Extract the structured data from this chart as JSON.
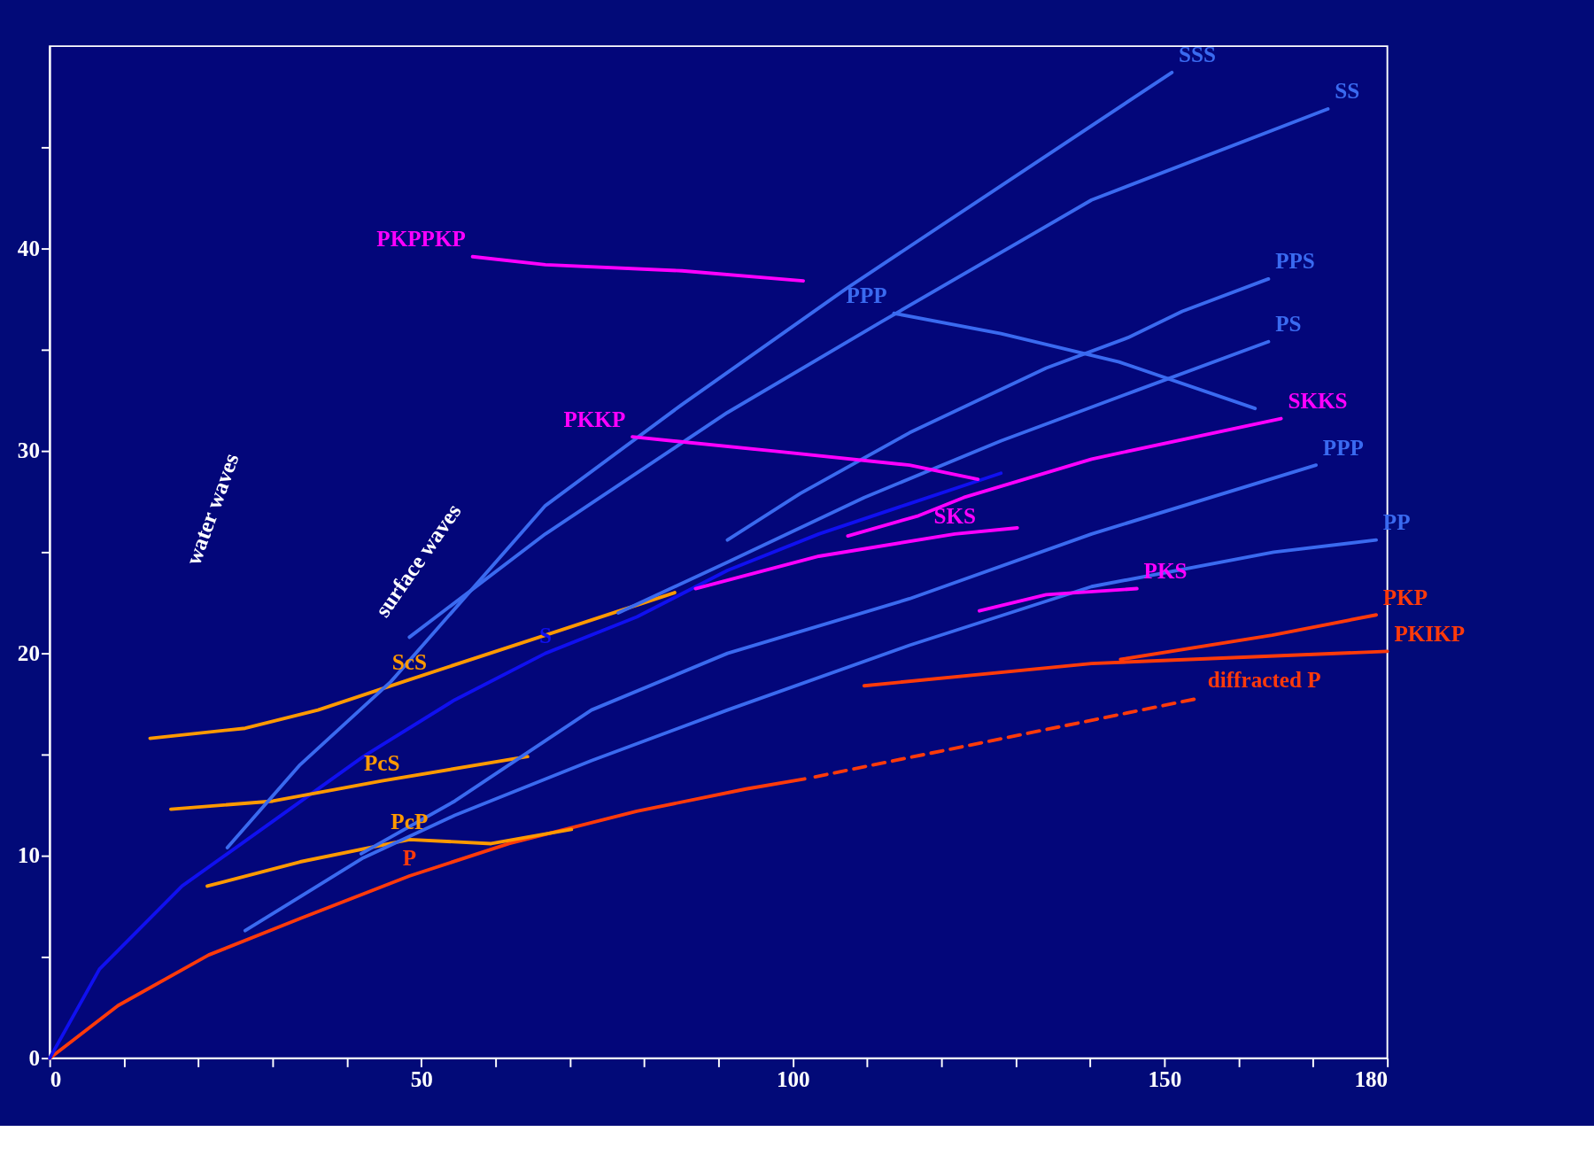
{
  "chart_data": {
    "type": "line",
    "xlim": [
      0,
      180
    ],
    "ylim": [
      0,
      50
    ],
    "xticks": [
      0,
      {
        "value": 10,
        "label": null
      },
      {
        "value": 20,
        "label": null
      },
      {
        "value": 30,
        "label": null
      },
      {
        "value": 40,
        "label": null
      },
      50,
      {
        "value": 60,
        "label": null
      },
      {
        "value": 70,
        "label": null
      },
      {
        "value": 80,
        "label": null
      },
      {
        "value": 90,
        "label": null
      },
      100,
      {
        "value": 110,
        "label": null
      },
      {
        "value": 120,
        "label": null
      },
      {
        "value": 130,
        "label": null
      },
      {
        "value": 140,
        "label": null
      },
      150,
      {
        "value": 160,
        "label": null
      },
      {
        "value": 170,
        "label": null
      },
      180
    ],
    "yticks": [
      0,
      {
        "value": 5,
        "label": null
      },
      10,
      {
        "value": 15,
        "label": null
      },
      20,
      {
        "value": 25,
        "label": null
      },
      30,
      {
        "value": 35,
        "label": null
      },
      40,
      {
        "value": 45,
        "label": null
      }
    ],
    "grid": false,
    "marker": "none",
    "series": [
      {
        "name": "P",
        "color": "#ff3a0a",
        "x": [
          0,
          9.2,
          21.4,
          33.7,
          48.4,
          61.8,
          79,
          93.7,
          101.6
        ],
        "values": [
          0,
          2.6,
          5.1,
          6.9,
          9.0,
          10.6,
          12.2,
          13.3,
          13.8
        ]
      },
      {
        "name": "diffracted P",
        "color": "#ff3a0a",
        "line_style": "dashed",
        "x": [
          103,
          154.9
        ],
        "values": [
          13.9,
          17.8
        ]
      },
      {
        "name": "S",
        "color": "#1010f0",
        "x": [
          0,
          6.7,
          17.8,
          30,
          42.2,
          54.5,
          66.7,
          79,
          91.2,
          103.5,
          115.7,
          128
        ],
        "values": [
          0,
          4.4,
          8.5,
          11.7,
          14.9,
          17.7,
          20.0,
          21.8,
          24.1,
          25.9,
          27.4,
          28.9
        ]
      },
      {
        "name": "PcP",
        "color": "#ff9900",
        "x": [
          21.2,
          33.7,
          48.4,
          59.4,
          70.2
        ],
        "values": [
          8.5,
          9.7,
          10.8,
          10.6,
          11.3
        ]
      },
      {
        "name": "PcS",
        "color": "#ff9900",
        "x": [
          16.3,
          30,
          44.7,
          64.3
        ],
        "values": [
          12.3,
          12.7,
          13.7,
          14.9
        ]
      },
      {
        "name": "ScS",
        "color": "#ff9900",
        "x": [
          13.5,
          26.3,
          36.1,
          48.4,
          66.7,
          84.1
        ],
        "values": [
          15.8,
          16.3,
          17.2,
          18.7,
          20.9,
          23.0
        ]
      },
      {
        "name": "PP",
        "color": "#3a6af0",
        "x": [
          26.3,
          42.2,
          54.5,
          72.9,
          91.2,
          115.7,
          140.2,
          164.7,
          178.5
        ],
        "values": [
          6.3,
          9.9,
          12.0,
          14.7,
          17.2,
          20.4,
          23.3,
          25.0,
          25.6
        ]
      },
      {
        "name": "PPP",
        "color": "#3a6af0",
        "x": [
          41.9,
          54.5,
          72.9,
          91.2,
          115.7,
          140.2,
          170.4
        ],
        "values": [
          10.1,
          12.7,
          17.2,
          20.0,
          22.7,
          25.9,
          29.3
        ]
      },
      {
        "name": "PPP",
        "color": "#3a6af0",
        "x": [
          113.6,
          128,
          143.9,
          162.2
        ],
        "values": [
          36.8,
          35.8,
          34.4,
          32.1
        ]
      },
      {
        "name": "PS",
        "color": "#3a6af0",
        "x": [
          76.5,
          91.2,
          109.6,
          128,
          146.3,
          164
        ],
        "values": [
          22.0,
          24.5,
          27.7,
          30.5,
          33.0,
          35.4
        ]
      },
      {
        "name": "PPS",
        "color": "#3a6af0",
        "x": [
          91.2,
          101,
          115.7,
          134.1,
          145.1,
          152.4,
          164
        ],
        "values": [
          25.6,
          27.9,
          30.9,
          34.1,
          35.6,
          36.9,
          38.5
        ]
      },
      {
        "name": "SS",
        "color": "#3a6af0",
        "x": [
          48.4,
          66.7,
          91.2,
          112,
          140.2,
          172
        ],
        "values": [
          20.8,
          25.9,
          31.9,
          36.4,
          42.4,
          46.9
        ]
      },
      {
        "name": "SSS",
        "color": "#3a6af0",
        "x": [
          23.9,
          33.7,
          45.9,
          66.7,
          85.1,
          107.1,
          128,
          151
        ],
        "values": [
          10.4,
          14.5,
          18.6,
          27.3,
          32.3,
          38.0,
          43.1,
          48.7
        ]
      },
      {
        "name": "PKPPKP",
        "color": "#ff00ff",
        "x": [
          56.9,
          66.7,
          85.1,
          101.4
        ],
        "values": [
          39.6,
          39.2,
          38.9,
          38.4
        ]
      },
      {
        "name": "PKKP",
        "color": "#ff00ff",
        "x": [
          78.4,
          97.3,
          115.7,
          124.9
        ],
        "values": [
          30.7,
          30.0,
          29.3,
          28.6
        ]
      },
      {
        "name": "SKKS",
        "color": "#ff00ff",
        "x": [
          107.4,
          116.9,
          123,
          140.2,
          165.7
        ],
        "values": [
          25.8,
          26.8,
          27.7,
          29.6,
          31.6
        ]
      },
      {
        "name": "SKS",
        "color": "#ff00ff",
        "x": [
          86.9,
          103.5,
          121.8,
          130.2
        ],
        "values": [
          23.2,
          24.8,
          25.9,
          26.2
        ]
      },
      {
        "name": "PKS",
        "color": "#ff00ff",
        "x": [
          125.1,
          134.1,
          146.3
        ],
        "values": [
          22.1,
          22.9,
          23.2
        ]
      },
      {
        "name": "PKP",
        "color": "#ff3a0a",
        "x": [
          144.1,
          164.5,
          178.5
        ],
        "values": [
          19.7,
          20.9,
          21.9
        ]
      },
      {
        "name": "PKIKP",
        "color": "#ff3a0a",
        "x": [
          109.6,
          140.2,
          180
        ],
        "values": [
          18.4,
          19.5,
          20.1
        ]
      }
    ],
    "annotations": [
      "water waves",
      "surface waves"
    ]
  }
}
